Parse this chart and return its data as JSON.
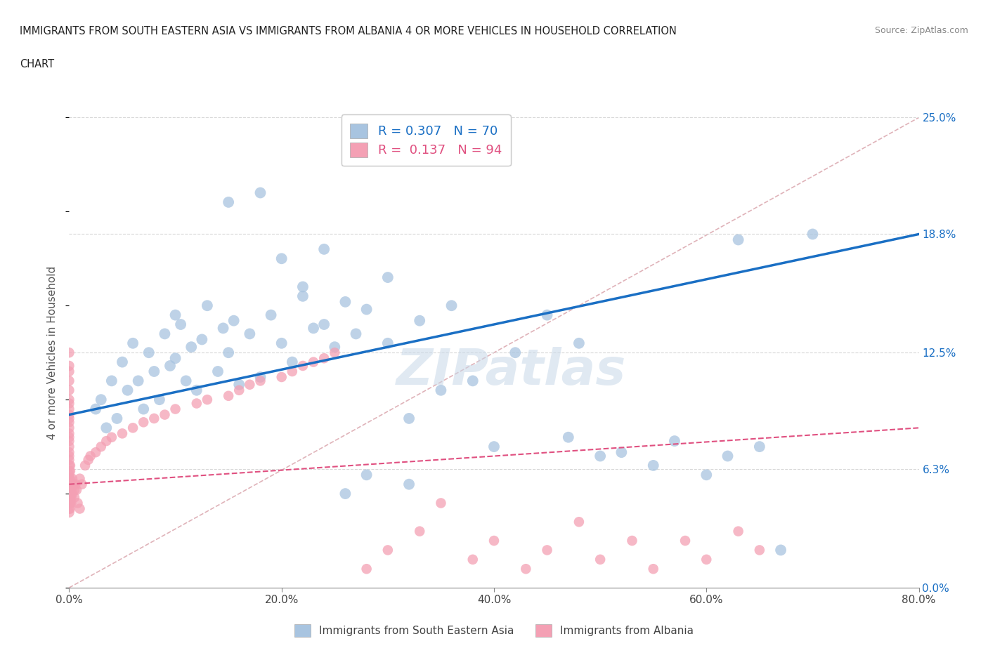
{
  "title_line1": "IMMIGRANTS FROM SOUTH EASTERN ASIA VS IMMIGRANTS FROM ALBANIA 4 OR MORE VEHICLES IN HOUSEHOLD CORRELATION",
  "title_line2": "CHART",
  "source": "Source: ZipAtlas.com",
  "ylabel": "4 or more Vehicles in Household",
  "xlim": [
    0.0,
    80.0
  ],
  "ylim": [
    0.0,
    25.0
  ],
  "yticks": [
    0.0,
    6.3,
    12.5,
    18.8,
    25.0
  ],
  "ytick_labels": [
    "0.0%",
    "6.3%",
    "12.5%",
    "18.8%",
    "25.0%"
  ],
  "xticks": [
    0.0,
    20.0,
    40.0,
    60.0,
    80.0
  ],
  "xtick_labels": [
    "0.0%",
    "20.0%",
    "40.0%",
    "60.0%",
    "80.0%"
  ],
  "R_blue": 0.307,
  "N_blue": 70,
  "R_pink": 0.137,
  "N_pink": 94,
  "blue_color": "#a8c4e0",
  "blue_line_color": "#1a6fc4",
  "pink_color": "#f4a0b4",
  "pink_line_color": "#e05080",
  "diag_color": "#d8a0a8",
  "background_color": "#ffffff",
  "watermark": "ZIPatlas",
  "blue_x": [
    2.5,
    3.0,
    3.5,
    4.0,
    4.5,
    5.0,
    5.5,
    6.0,
    6.5,
    7.0,
    7.5,
    8.0,
    8.5,
    9.0,
    9.5,
    10.0,
    10.5,
    11.0,
    11.5,
    12.0,
    12.5,
    13.0,
    14.0,
    14.5,
    15.0,
    15.5,
    16.0,
    17.0,
    18.0,
    19.0,
    20.0,
    21.0,
    22.0,
    23.0,
    24.0,
    25.0,
    26.0,
    27.0,
    28.0,
    30.0,
    32.0,
    33.0,
    35.0,
    36.0,
    38.0,
    40.0,
    42.0,
    45.0,
    47.0,
    48.0,
    50.0,
    52.0,
    55.0,
    57.0,
    60.0,
    62.0,
    63.0,
    65.0,
    67.0,
    70.0,
    30.0,
    32.0,
    20.0,
    22.0,
    24.0,
    26.0,
    28.0,
    15.0,
    18.0,
    10.0
  ],
  "blue_y": [
    9.5,
    10.0,
    8.5,
    11.0,
    9.0,
    12.0,
    10.5,
    13.0,
    11.0,
    9.5,
    12.5,
    11.5,
    10.0,
    13.5,
    11.8,
    12.2,
    14.0,
    11.0,
    12.8,
    10.5,
    13.2,
    15.0,
    11.5,
    13.8,
    12.5,
    14.2,
    10.8,
    13.5,
    11.2,
    14.5,
    13.0,
    12.0,
    15.5,
    13.8,
    14.0,
    12.8,
    15.2,
    13.5,
    14.8,
    13.0,
    9.0,
    14.2,
    10.5,
    15.0,
    11.0,
    7.5,
    12.5,
    14.5,
    8.0,
    13.0,
    7.0,
    7.2,
    6.5,
    7.8,
    6.0,
    7.0,
    18.5,
    7.5,
    2.0,
    18.8,
    16.5,
    5.5,
    17.5,
    16.0,
    18.0,
    5.0,
    6.0,
    20.5,
    21.0,
    14.5
  ],
  "pink_x": [
    0.0,
    0.0,
    0.0,
    0.0,
    0.0,
    0.0,
    0.0,
    0.0,
    0.0,
    0.0,
    0.0,
    0.0,
    0.0,
    0.0,
    0.0,
    0.0,
    0.0,
    0.0,
    0.0,
    0.0,
    0.0,
    0.0,
    0.0,
    0.0,
    0.0,
    0.0,
    0.0,
    0.0,
    0.0,
    0.0,
    0.1,
    0.1,
    0.1,
    0.1,
    0.1,
    0.1,
    0.1,
    0.1,
    0.2,
    0.2,
    0.2,
    0.2,
    0.3,
    0.3,
    0.4,
    0.5,
    0.5,
    0.6,
    0.7,
    0.8,
    1.0,
    1.0,
    1.2,
    1.5,
    1.8,
    2.0,
    2.5,
    3.0,
    3.5,
    4.0,
    5.0,
    6.0,
    7.0,
    8.0,
    9.0,
    10.0,
    12.0,
    13.0,
    15.0,
    16.0,
    17.0,
    18.0,
    20.0,
    21.0,
    22.0,
    23.0,
    24.0,
    25.0,
    28.0,
    30.0,
    33.0,
    35.0,
    38.0,
    40.0,
    43.0,
    45.0,
    48.0,
    50.0,
    53.0,
    55.0,
    58.0,
    60.0,
    63.0,
    65.0
  ],
  "pink_y": [
    12.5,
    11.8,
    11.5,
    11.0,
    10.5,
    10.0,
    9.8,
    9.5,
    9.2,
    9.0,
    8.8,
    8.5,
    8.2,
    8.0,
    7.8,
    7.5,
    7.2,
    7.0,
    6.8,
    6.5,
    6.2,
    6.0,
    5.8,
    5.5,
    5.2,
    5.0,
    4.8,
    4.5,
    4.2,
    4.0,
    6.5,
    6.2,
    5.8,
    5.5,
    5.0,
    4.8,
    4.5,
    4.2,
    5.5,
    5.2,
    4.8,
    4.5,
    5.8,
    5.0,
    5.5,
    5.2,
    4.8,
    5.5,
    5.2,
    4.5,
    5.8,
    4.2,
    5.5,
    6.5,
    6.8,
    7.0,
    7.2,
    7.5,
    7.8,
    8.0,
    8.2,
    8.5,
    8.8,
    9.0,
    9.2,
    9.5,
    9.8,
    10.0,
    10.2,
    10.5,
    10.8,
    11.0,
    11.2,
    11.5,
    11.8,
    12.0,
    12.2,
    12.5,
    1.0,
    2.0,
    3.0,
    4.5,
    1.5,
    2.5,
    1.0,
    2.0,
    3.5,
    1.5,
    2.5,
    1.0,
    2.5,
    1.5,
    3.0,
    2.0
  ],
  "blue_trend_x0": 0.0,
  "blue_trend_y0": 9.2,
  "blue_trend_x1": 80.0,
  "blue_trend_y1": 18.8,
  "pink_trend_x0": 0.0,
  "pink_trend_y0": 5.5,
  "pink_trend_x1": 80.0,
  "pink_trend_y1": 8.5
}
